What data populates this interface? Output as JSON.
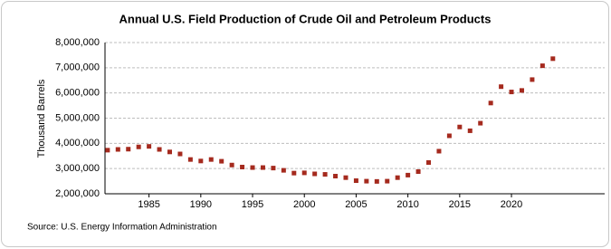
{
  "chart_data": {
    "type": "scatter",
    "title": "Annual U.S. Field Production of Crude Oil and Petroleum Products",
    "y_label": "Thousand Barrels",
    "source": "Source: U.S. Energy Information Administration",
    "color": "#a52a1e",
    "grid": true,
    "x": [
      1981,
      1982,
      1983,
      1984,
      1985,
      1986,
      1987,
      1988,
      1989,
      1990,
      1991,
      1992,
      1993,
      1994,
      1995,
      1996,
      1997,
      1998,
      1999,
      2000,
      2001,
      2002,
      2003,
      2004,
      2005,
      2006,
      2007,
      2008,
      2009,
      2010,
      2011,
      2012,
      2013,
      2014,
      2015,
      2016,
      2017,
      2018,
      2019,
      2020,
      2021,
      2022,
      2023,
      2024
    ],
    "values": [
      3730000,
      3760000,
      3770000,
      3860000,
      3880000,
      3760000,
      3660000,
      3580000,
      3360000,
      3300000,
      3360000,
      3290000,
      3140000,
      3060000,
      3040000,
      3040000,
      3020000,
      2930000,
      2820000,
      2830000,
      2790000,
      2770000,
      2700000,
      2640000,
      2520000,
      2500000,
      2490000,
      2500000,
      2640000,
      2740000,
      2880000,
      3240000,
      3690000,
      4300000,
      4650000,
      4500000,
      4800000,
      5600000,
      6250000,
      6040000,
      6100000,
      6530000,
      7080000,
      7360000
    ],
    "xlim": [
      1980.75,
      2029
    ],
    "xticks": [
      1985,
      1990,
      1995,
      2000,
      2005,
      2010,
      2015,
      2020
    ],
    "ylim": [
      2000000,
      8000000
    ],
    "yticks": [
      {
        "value": 2000000,
        "label": "2,000,000"
      },
      {
        "value": 3000000,
        "label": "3,000,000"
      },
      {
        "value": 4000000,
        "label": "4,000,000"
      },
      {
        "value": 5000000,
        "label": "5,000,000"
      },
      {
        "value": 6000000,
        "label": "6,000,000"
      },
      {
        "value": 7000000,
        "label": "7,000,000"
      },
      {
        "value": 8000000,
        "label": "8,000,000"
      }
    ]
  }
}
